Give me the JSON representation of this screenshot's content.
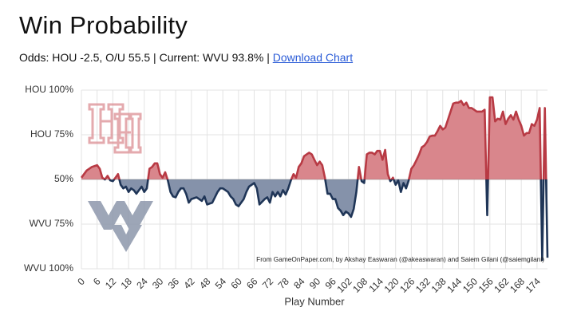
{
  "chart_data": {
    "type": "line",
    "title": "Win Probability",
    "subtitle": "Odds: HOU -2.5, O/U 55.5 | Current: WVU 93.8% |",
    "link": "Download Chart",
    "xlabel": "Play Number",
    "annotation": "From GameOnPaper.com, by Akshay Easwaran (@akeaswaran) and Saiem Gilani (@saiemgilani)",
    "x": [
      0,
      2,
      4,
      6,
      7,
      8,
      9,
      10,
      11,
      12,
      13,
      14,
      15,
      16,
      17,
      18,
      19,
      20,
      21,
      22,
      23,
      24,
      25,
      26,
      27,
      28,
      29,
      30,
      31,
      32,
      33,
      34,
      35,
      36,
      37,
      38,
      39,
      40,
      41,
      42,
      44,
      46,
      47,
      48,
      50,
      52,
      53,
      54,
      56,
      57,
      58,
      59,
      60,
      62,
      63,
      64,
      66,
      67,
      68,
      70,
      71,
      72,
      73,
      74,
      75,
      76,
      77,
      78,
      79,
      80,
      81,
      82,
      83,
      84,
      85,
      86,
      87,
      88,
      89,
      90,
      91,
      92,
      93,
      94,
      95,
      96,
      97,
      98,
      99,
      100,
      101,
      102,
      103,
      104,
      105,
      106,
      107,
      108,
      109,
      110,
      111,
      112,
      113,
      114,
      115,
      116,
      117,
      118,
      119,
      120,
      121,
      122,
      123,
      124,
      125,
      126,
      127,
      128,
      129,
      130,
      131,
      132,
      133,
      134,
      135,
      136,
      137,
      138,
      139,
      140,
      141,
      142,
      143,
      144,
      145,
      146,
      147,
      148,
      149,
      150,
      151,
      152,
      153,
      154,
      155,
      156,
      157,
      158,
      159,
      160,
      161,
      162,
      163,
      164,
      165,
      166,
      167,
      168,
      169,
      170,
      171,
      172,
      173,
      174,
      175,
      176,
      177,
      178
    ],
    "series": [
      {
        "name": "HOU win probability",
        "color": "#b83a44",
        "color_below": "#1f3557",
        "fill": "#d9868c",
        "fill_below": "#8592aa",
        "values": [
          51,
          55,
          57,
          58,
          56,
          51,
          50,
          52,
          49.5,
          49,
          51,
          53,
          47,
          45,
          46,
          43,
          45,
          44,
          42,
          44,
          46,
          43,
          45,
          56,
          57,
          59,
          59,
          53,
          51,
          54,
          49.5,
          43,
          40.5,
          40,
          43,
          45,
          45,
          42,
          37,
          39,
          40,
          38,
          40.5,
          36,
          37,
          43,
          45,
          45,
          43,
          40.5,
          39,
          36,
          35,
          39,
          43,
          46,
          48,
          45,
          36,
          39,
          40,
          37,
          43,
          40.5,
          43,
          40.5,
          44,
          41.5,
          45,
          49.5,
          53,
          51,
          57,
          59,
          63,
          64,
          65,
          64,
          61,
          58,
          60,
          58,
          51,
          42,
          42,
          39,
          39,
          34,
          32.5,
          30,
          32,
          31,
          29,
          33.5,
          43,
          57,
          49,
          48,
          64,
          65,
          65,
          64,
          66,
          66,
          61,
          66.5,
          53,
          49,
          51,
          47,
          49.5,
          43,
          48,
          45,
          49.5,
          56,
          58,
          61,
          64,
          68,
          69,
          71,
          74,
          74.5,
          74.5,
          77,
          80,
          78,
          79,
          83.5,
          88,
          92.5,
          93,
          93,
          94,
          91.5,
          93,
          90,
          90,
          89,
          88,
          88,
          88,
          89,
          30,
          96,
          96,
          82.5,
          84,
          83.5,
          88,
          81,
          84,
          86,
          83.5,
          88,
          83.5,
          80,
          74.5,
          76,
          76,
          81,
          80,
          83.5,
          90,
          5,
          90,
          6.2
        ]
      }
    ],
    "baseline": 50,
    "xlim": [
      0,
      178
    ],
    "ylim": [
      0,
      100
    ],
    "xticks": [
      0,
      6,
      12,
      18,
      24,
      30,
      36,
      42,
      48,
      54,
      60,
      66,
      72,
      78,
      84,
      90,
      96,
      102,
      108,
      114,
      120,
      126,
      132,
      138,
      144,
      150,
      156,
      162,
      168,
      174
    ],
    "yticks": [
      {
        "value": 0,
        "label": "WVU 100%"
      },
      {
        "value": 25,
        "label": "WVU 75%"
      },
      {
        "value": 50,
        "label": "50%"
      },
      {
        "value": 75,
        "label": "HOU 75%"
      },
      {
        "value": 100,
        "label": "HOU 100%"
      }
    ],
    "grid": true
  }
}
